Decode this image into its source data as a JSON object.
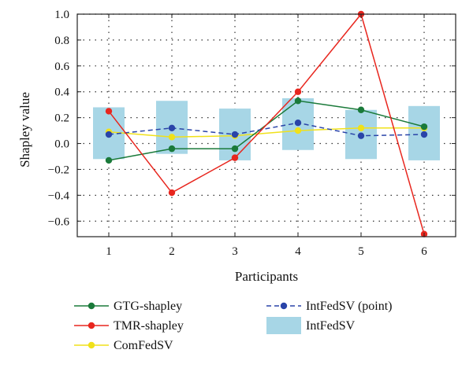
{
  "chart_data": {
    "type": "line",
    "title": "",
    "xlabel": "Participants",
    "ylabel": "Shapley value",
    "categories": [
      1,
      2,
      3,
      4,
      5,
      6
    ],
    "xlim": [
      0.5,
      6.5
    ],
    "ylim": [
      -0.72,
      1.0
    ],
    "yticks": [
      -0.6,
      -0.4,
      -0.2,
      0.0,
      0.2,
      0.4,
      0.6,
      0.8,
      1.0
    ],
    "ytick_labels": [
      "−0.6",
      "−0.4",
      "−0.2",
      "0.0",
      "0.2",
      "0.4",
      "0.6",
      "0.8",
      "1.0"
    ],
    "grid": true,
    "legend_position": "bottom",
    "series": [
      {
        "name": "GTG-shapley",
        "kind": "line",
        "color": "#1a7a3a",
        "values": [
          -0.13,
          -0.04,
          -0.04,
          0.33,
          0.26,
          0.13
        ]
      },
      {
        "name": "TMR-shapley",
        "kind": "line",
        "color": "#e8261e",
        "values": [
          0.25,
          -0.38,
          -0.11,
          0.4,
          1.0,
          -0.7
        ]
      },
      {
        "name": "ComFedSV",
        "kind": "line",
        "color": "#f0e11a",
        "values": [
          0.09,
          0.05,
          0.06,
          0.1,
          0.12,
          0.12
        ]
      },
      {
        "name": "IntFedSV (point)",
        "kind": "dashed-line",
        "color": "#2a44a8",
        "values": [
          0.07,
          0.12,
          0.07,
          0.16,
          0.06,
          0.07
        ]
      },
      {
        "name": "IntFedSV",
        "kind": "interval",
        "color": "#a7d6e6",
        "lower": [
          -0.12,
          -0.08,
          -0.13,
          -0.05,
          -0.12,
          -0.13
        ],
        "upper": [
          0.28,
          0.33,
          0.27,
          0.35,
          0.26,
          0.29
        ]
      }
    ]
  }
}
